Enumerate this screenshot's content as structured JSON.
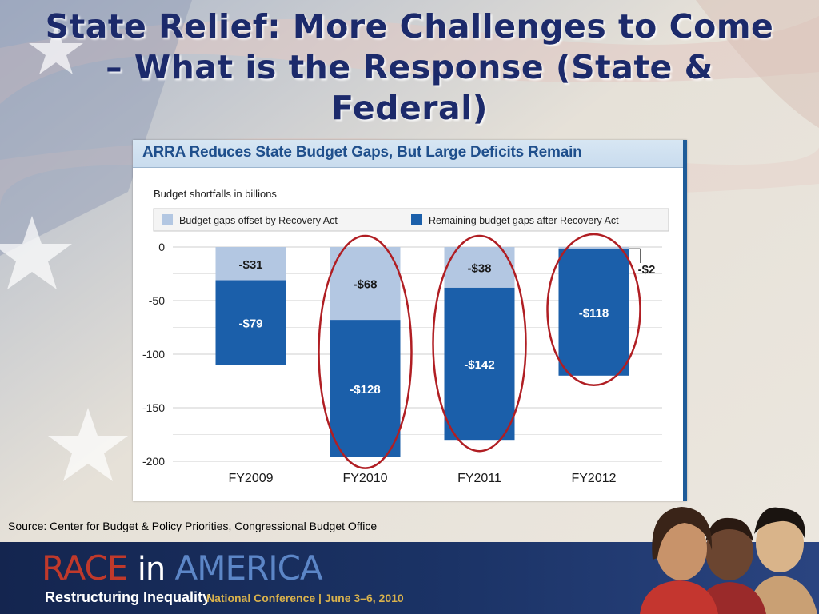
{
  "slide": {
    "title": "State Relief: More Challenges to Come – What is the Response (State & Federal)",
    "source": "Source: Center for Budget & Policy Priorities, Congressional Budget Office"
  },
  "footer": {
    "brand_race": "RACE",
    "brand_in": "in",
    "brand_america": "AMERICA",
    "subtitle": "Restructuring Inequality",
    "conference": "National Conference | June 3–6, 2010"
  },
  "colors": {
    "title": "#1c2a6b",
    "offset_bar": "#b3c7e2",
    "remaining_bar": "#1b5faa",
    "highlight_circle": "#b01e23",
    "header_text": "#1f4f8c"
  },
  "chart_data": {
    "type": "bar",
    "stacked": true,
    "title": "ARRA Reduces State Budget Gaps, But Large Deficits Remain",
    "ylabel": "Budget shortfalls in billions",
    "categories": [
      "FY2009",
      "FY2010",
      "FY2011",
      "FY2012"
    ],
    "series": [
      {
        "name": "Budget gaps offset by Recovery Act",
        "values": [
          -31,
          -68,
          -38,
          -2
        ],
        "labels": [
          "-$31",
          "-$68",
          "-$38",
          "-$2"
        ]
      },
      {
        "name": "Remaining budget gaps after Recovery Act",
        "values": [
          -79,
          -128,
          -142,
          -118
        ],
        "labels": [
          "-$79",
          "-$128",
          "-$142",
          "-$118"
        ]
      }
    ],
    "ylim": [
      -200,
      0
    ],
    "yticks": [
      0,
      -50,
      -100,
      -150,
      -200
    ],
    "grid": true,
    "legend": "top",
    "highlighted_categories": [
      "FY2010",
      "FY2011",
      "FY2012"
    ]
  }
}
